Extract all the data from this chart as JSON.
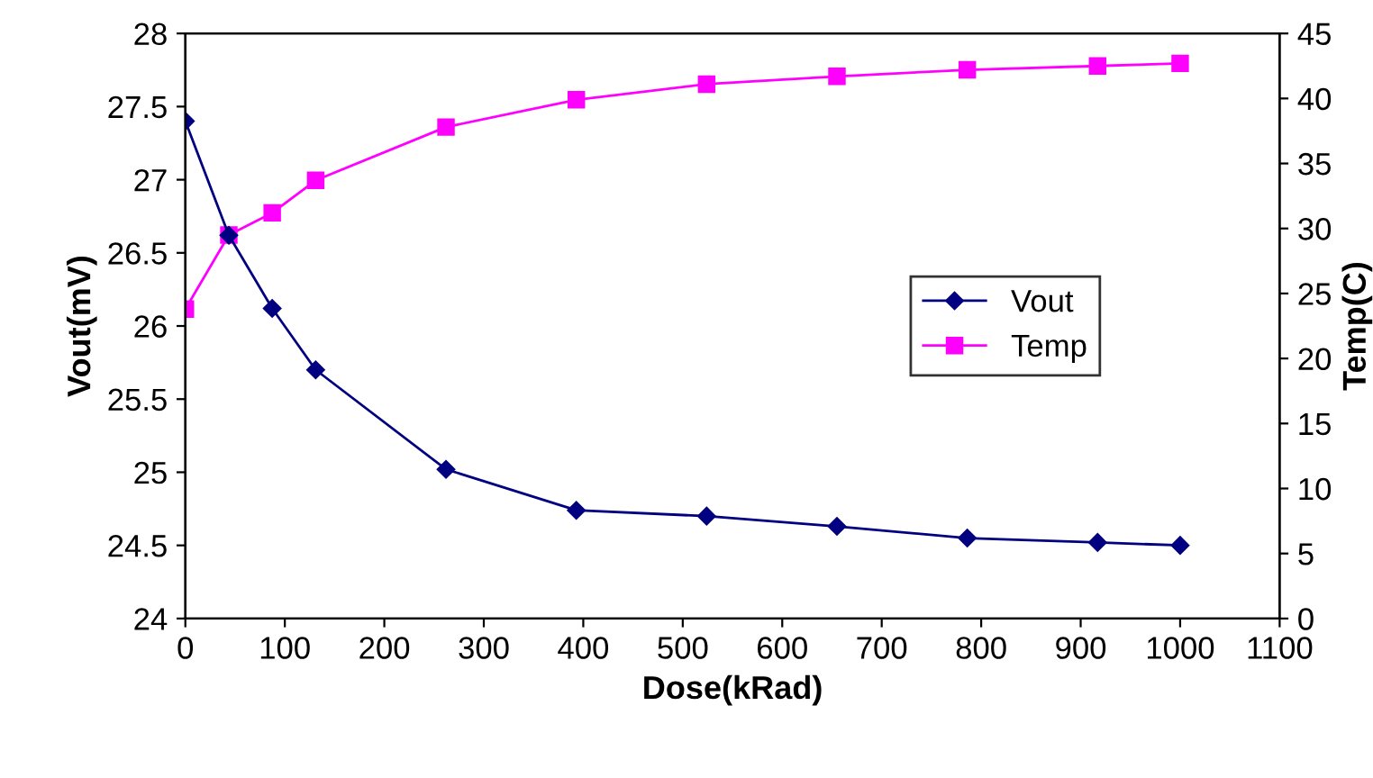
{
  "chart_data": {
    "type": "line",
    "xlabel": "Dose(kRad)",
    "ylabel": "Vout(mV)",
    "y2label": "Temp(C)",
    "x": [
      0,
      43.7,
      87.3,
      131,
      262,
      393,
      524,
      655,
      786,
      917,
      1000
    ],
    "series": [
      {
        "name": "Vout",
        "color": "#000080",
        "marker": "diamond",
        "values": [
          27.4,
          26.62,
          26.12,
          25.7,
          25.02,
          24.74,
          24.7,
          24.63,
          24.55,
          24.52,
          24.5
        ]
      },
      {
        "name": "Temp",
        "color": "#ff00ff",
        "marker": "square",
        "axis": "y2",
        "values": [
          23.8,
          29.5,
          31.2,
          33.7,
          37.8,
          39.9,
          41.1,
          41.7,
          42.2,
          42.5,
          42.7
        ]
      }
    ],
    "xlim": [
      0,
      1100
    ],
    "xticks": [
      0,
      100,
      200,
      300,
      400,
      500,
      600,
      700,
      800,
      900,
      1000,
      1100
    ],
    "ylim": [
      24,
      28
    ],
    "yticks": [
      24,
      24.5,
      25,
      25.5,
      26,
      26.5,
      27,
      27.5,
      28
    ],
    "y2lim": [
      0,
      45
    ],
    "y2ticks": [
      0,
      5,
      10,
      15,
      20,
      25,
      30,
      35,
      40,
      45
    ],
    "legend": "center right",
    "grid": false,
    "line_style": "solid"
  }
}
